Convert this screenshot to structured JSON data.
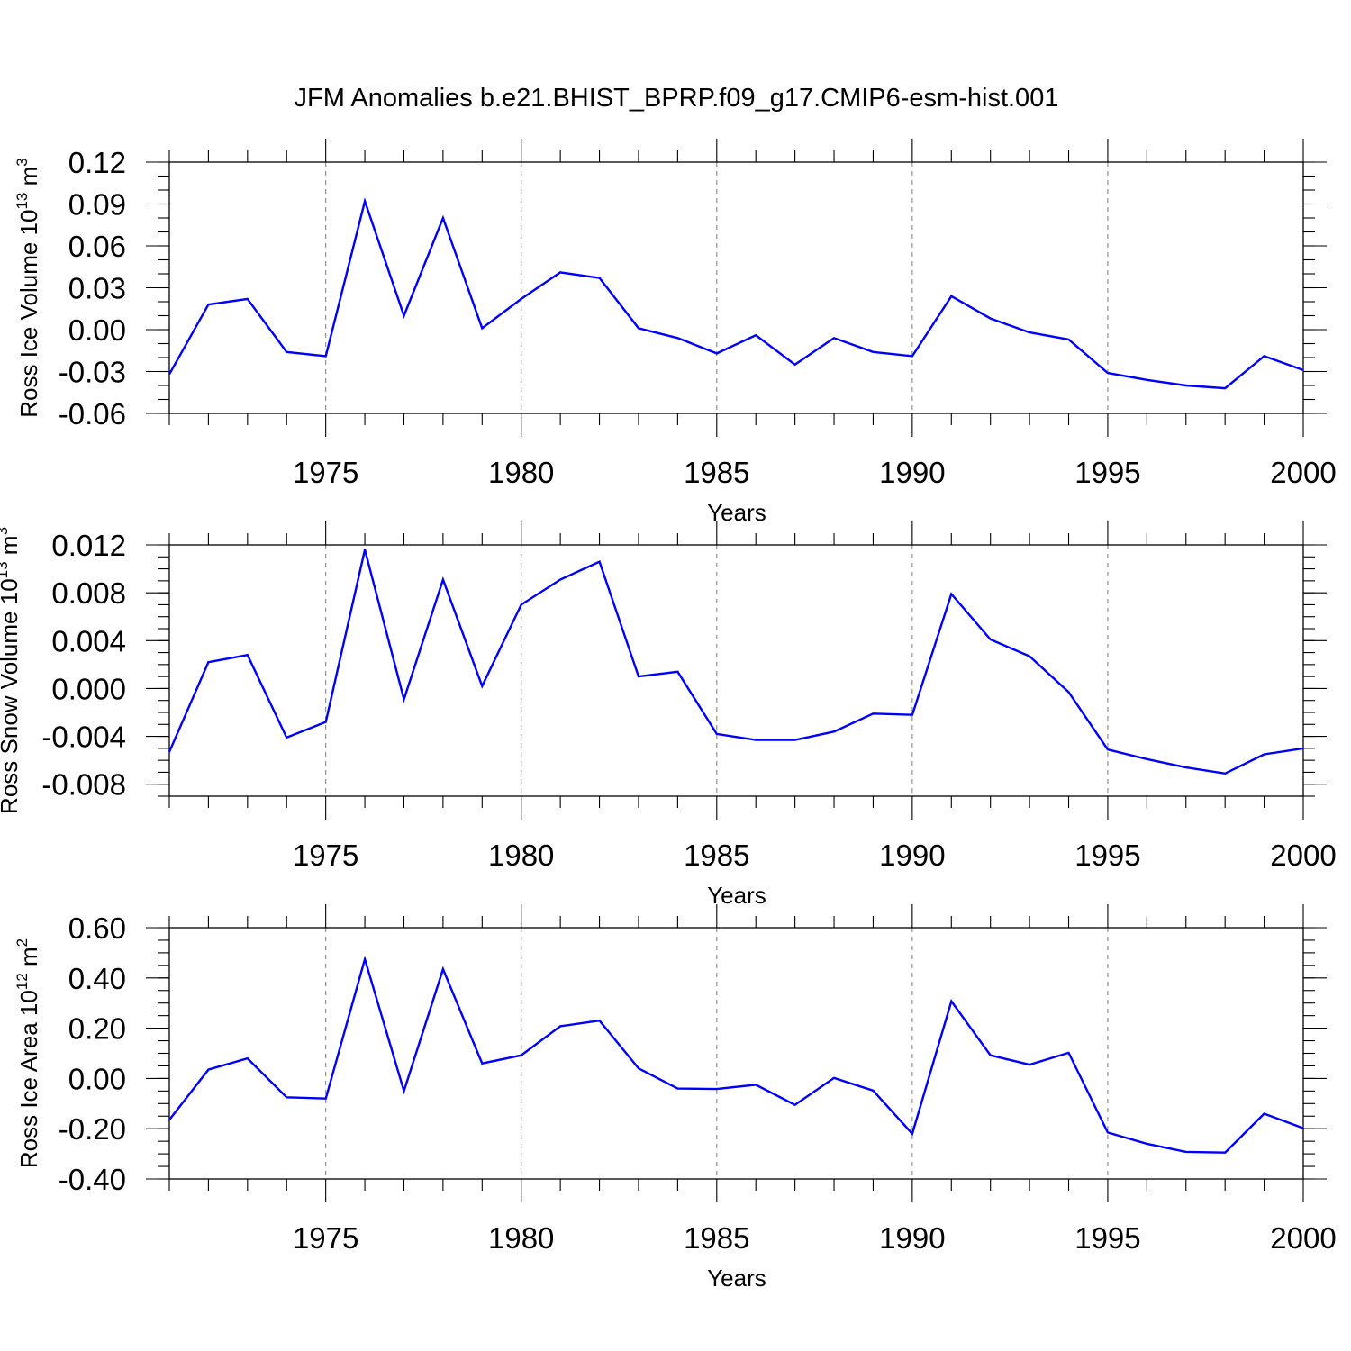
{
  "title": "JFM Anomalies b.e21.BHIST_BPRP.f09_g17.CMIP6-esm-hist.001",
  "colors": {
    "line": "#0000ff",
    "grid": "#888888",
    "frame": "#000000"
  },
  "chart_data": [
    {
      "type": "line",
      "x": [
        1971,
        1972,
        1973,
        1974,
        1975,
        1976,
        1977,
        1978,
        1979,
        1980,
        1981,
        1982,
        1983,
        1984,
        1985,
        1986,
        1987,
        1988,
        1989,
        1990,
        1991,
        1992,
        1993,
        1994,
        1995,
        1996,
        1997,
        1998,
        1999,
        2000
      ],
      "values": [
        -0.032,
        0.018,
        0.022,
        -0.016,
        -0.019,
        0.092,
        0.01,
        0.08,
        0.001,
        0.022,
        0.041,
        0.037,
        0.001,
        -0.006,
        -0.017,
        -0.004,
        -0.025,
        -0.006,
        -0.016,
        -0.019,
        0.024,
        0.008,
        -0.002,
        -0.007,
        -0.031,
        -0.036,
        -0.04,
        -0.042,
        -0.019,
        -0.029
      ],
      "xlabel": "Years",
      "ylabel_main": "Ross Ice Volume 10",
      "ylabel_exp": "13",
      "ylabel_unit": " m",
      "ylabel_unit_exp": "3",
      "xlim": [
        1971,
        2000
      ],
      "ylim": [
        -0.06,
        0.12
      ],
      "xticks": [
        1975,
        1980,
        1985,
        1990,
        1995,
        2000
      ],
      "xtick_labels": [
        "1975",
        "1980",
        "1985",
        "1990",
        "1995",
        "2000"
      ],
      "yticks": [
        -0.06,
        -0.03,
        0.0,
        0.03,
        0.06,
        0.09,
        0.12
      ],
      "ytick_labels": [
        "-0.06",
        "-0.03",
        "0.00",
        "0.03",
        "0.06",
        "0.09",
        "0.12"
      ],
      "y_minor_step": 0.01,
      "grid": "vertical dashed at major x ticks"
    },
    {
      "type": "line",
      "x": [
        1971,
        1972,
        1973,
        1974,
        1975,
        1976,
        1977,
        1978,
        1979,
        1980,
        1981,
        1982,
        1983,
        1984,
        1985,
        1986,
        1987,
        1988,
        1989,
        1990,
        1991,
        1992,
        1993,
        1994,
        1995,
        1996,
        1997,
        1998,
        1999,
        2000
      ],
      "values": [
        -0.0053,
        0.0022,
        0.0028,
        -0.0041,
        -0.0028,
        0.0116,
        -0.0009,
        0.0091,
        0.0002,
        0.007,
        0.0091,
        0.0106,
        0.001,
        0.0014,
        -0.0038,
        -0.0043,
        -0.0043,
        -0.0036,
        -0.0021,
        -0.0022,
        0.0079,
        0.0041,
        0.0027,
        -0.0003,
        -0.0051,
        -0.0059,
        -0.0066,
        -0.0071,
        -0.0055,
        -0.005
      ],
      "xlabel": "Years",
      "ylabel_main": "Ross Snow Volume 10",
      "ylabel_exp": "13",
      "ylabel_unit": " m",
      "ylabel_unit_exp": "3",
      "xlim": [
        1971,
        2000
      ],
      "ylim": [
        -0.009,
        0.012
      ],
      "xticks": [
        1975,
        1980,
        1985,
        1990,
        1995,
        2000
      ],
      "xtick_labels": [
        "1975",
        "1980",
        "1985",
        "1990",
        "1995",
        "2000"
      ],
      "yticks": [
        -0.008,
        -0.004,
        0.0,
        0.004,
        0.008,
        0.012
      ],
      "ytick_labels": [
        "-0.008",
        "-0.004",
        "0.000",
        "0.004",
        "0.008",
        "0.012"
      ],
      "y_minor_step": 0.001,
      "grid": "vertical dashed at major x ticks"
    },
    {
      "type": "line",
      "x": [
        1971,
        1972,
        1973,
        1974,
        1975,
        1976,
        1977,
        1978,
        1979,
        1980,
        1981,
        1982,
        1983,
        1984,
        1985,
        1986,
        1987,
        1988,
        1989,
        1990,
        1991,
        1992,
        1993,
        1994,
        1995,
        1996,
        1997,
        1998,
        1999,
        2000
      ],
      "values": [
        -0.165,
        0.035,
        0.08,
        -0.075,
        -0.08,
        0.475,
        -0.05,
        0.435,
        0.06,
        0.092,
        0.208,
        0.23,
        0.04,
        -0.04,
        -0.042,
        -0.025,
        -0.105,
        0.002,
        -0.048,
        -0.22,
        0.307,
        0.092,
        0.055,
        0.102,
        -0.215,
        -0.26,
        -0.292,
        -0.295,
        -0.14,
        -0.198
      ],
      "xlabel": "Years",
      "ylabel_main": "Ross Ice Area 10",
      "ylabel_exp": "12",
      "ylabel_unit": " m",
      "ylabel_unit_exp": "2",
      "xlim": [
        1971,
        2000
      ],
      "ylim": [
        -0.4,
        0.6
      ],
      "xticks": [
        1975,
        1980,
        1985,
        1990,
        1995,
        2000
      ],
      "xtick_labels": [
        "1975",
        "1980",
        "1985",
        "1990",
        "1995",
        "2000"
      ],
      "yticks": [
        -0.4,
        -0.2,
        0.0,
        0.2,
        0.4,
        0.6
      ],
      "ytick_labels": [
        "-0.40",
        "-0.20",
        "0.00",
        "0.20",
        "0.40",
        "0.60"
      ],
      "y_minor_step": 0.05,
      "grid": "vertical dashed at major x ticks"
    }
  ]
}
